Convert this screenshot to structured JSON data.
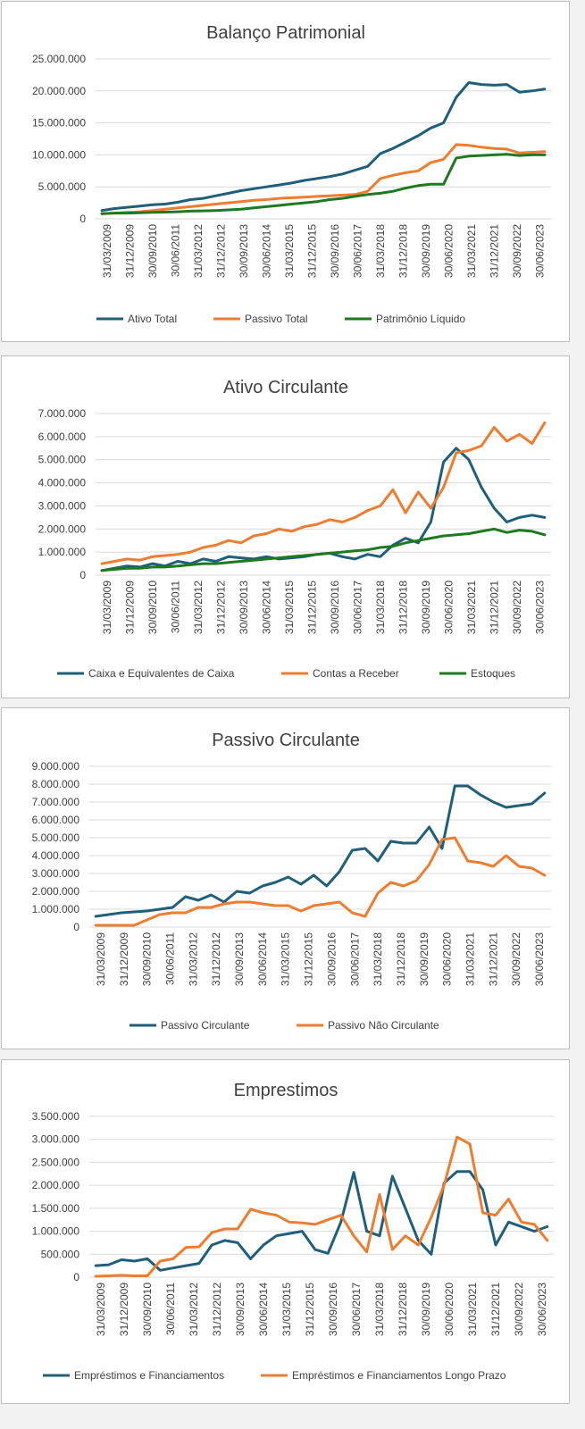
{
  "chart_data": [
    {
      "type": "line",
      "title": "Balanço Patrimonial",
      "x_labels": [
        "31/03/2009",
        "31/12/2009",
        "30/09/2010",
        "30/06/2011",
        "31/03/2012",
        "31/12/2012",
        "30/09/2013",
        "30/06/2014",
        "31/03/2015",
        "31/12/2015",
        "30/09/2016",
        "30/06/2017",
        "31/03/2018",
        "31/12/2018",
        "30/09/2019",
        "30/06/2020",
        "31/03/2021",
        "31/12/2021",
        "30/09/2022",
        "30/06/2023"
      ],
      "y_ticks": [
        "0",
        "5.000.000",
        "10.000.000",
        "15.000.000",
        "20.000.000",
        "25.000.000"
      ],
      "ylim": [
        0,
        25000000
      ],
      "legend": "bottom",
      "grid": true,
      "series": [
        {
          "name": "Ativo Total",
          "color": "#1f5f7a",
          "values": [
            1300000,
            1600000,
            1800000,
            2000000,
            2200000,
            2300000,
            2600000,
            3000000,
            3200000,
            3600000,
            4000000,
            4400000,
            4700000,
            5000000,
            5300000,
            5600000,
            6000000,
            6300000,
            6600000,
            7000000,
            7600000,
            8200000,
            10200000,
            11000000,
            12000000,
            13000000,
            14200000,
            15000000,
            19000000,
            21300000,
            21000000,
            20900000,
            21000000,
            19800000,
            20000000,
            20300000
          ]
        },
        {
          "name": "Passivo Total",
          "color": "#ed7d31",
          "values": [
            800000,
            900000,
            1000000,
            1100000,
            1300000,
            1500000,
            1700000,
            1900000,
            2100000,
            2300000,
            2500000,
            2700000,
            2900000,
            3000000,
            3200000,
            3300000,
            3400000,
            3500000,
            3600000,
            3700000,
            3800000,
            4300000,
            6300000,
            6800000,
            7200000,
            7500000,
            8800000,
            9300000,
            11600000,
            11500000,
            11200000,
            11000000,
            10900000,
            10300000,
            10400000,
            10500000
          ]
        },
        {
          "name": "Patrimônio Líquido",
          "color": "#1e7a1e",
          "values": [
            800000,
            900000,
            900000,
            950000,
            1000000,
            1050000,
            1100000,
            1200000,
            1250000,
            1300000,
            1400000,
            1500000,
            1700000,
            1900000,
            2100000,
            2300000,
            2500000,
            2700000,
            3000000,
            3200000,
            3500000,
            3800000,
            4000000,
            4300000,
            4800000,
            5200000,
            5400000,
            5400000,
            9500000,
            9800000,
            9900000,
            10000000,
            10100000,
            9900000,
            10000000,
            10000000
          ]
        }
      ]
    },
    {
      "type": "line",
      "title": "Ativo Circulante",
      "x_labels": [
        "31/03/2009",
        "31/12/2009",
        "30/09/2010",
        "30/06/2011",
        "31/03/2012",
        "31/12/2012",
        "30/09/2013",
        "30/06/2014",
        "31/03/2015",
        "31/12/2015",
        "30/09/2016",
        "30/06/2017",
        "31/03/2018",
        "31/12/2018",
        "30/09/2019",
        "30/06/2020",
        "31/03/2021",
        "31/12/2021",
        "30/09/2022",
        "30/06/2023"
      ],
      "y_ticks": [
        "0",
        "1.000.000",
        "2.000.000",
        "3.000.000",
        "4.000.000",
        "5.000.000",
        "6.000.000",
        "7.000.000"
      ],
      "ylim": [
        0,
        7000000
      ],
      "legend": "bottom",
      "grid": true,
      "series": [
        {
          "name": "Caixa e Equivalentes de Caixa",
          "color": "#1f5f7a",
          "values": [
            200000,
            300000,
            400000,
            350000,
            500000,
            400000,
            600000,
            500000,
            700000,
            600000,
            800000,
            750000,
            700000,
            800000,
            700000,
            750000,
            800000,
            900000,
            950000,
            800000,
            700000,
            900000,
            800000,
            1300000,
            1600000,
            1400000,
            2300000,
            4900000,
            5500000,
            5000000,
            3800000,
            2900000,
            2300000,
            2500000,
            2600000,
            2500000
          ]
        },
        {
          "name": "Contas a Receber",
          "color": "#ed7d31",
          "values": [
            500000,
            600000,
            700000,
            650000,
            800000,
            850000,
            900000,
            1000000,
            1200000,
            1300000,
            1500000,
            1400000,
            1700000,
            1800000,
            2000000,
            1900000,
            2100000,
            2200000,
            2400000,
            2300000,
            2500000,
            2800000,
            3000000,
            3700000,
            2700000,
            3600000,
            2900000,
            3800000,
            5300000,
            5400000,
            5600000,
            6400000,
            5800000,
            6100000,
            5700000,
            6600000
          ]
        },
        {
          "name": "Estoques",
          "color": "#1e7a1e",
          "values": [
            200000,
            250000,
            300000,
            300000,
            350000,
            350000,
            400000,
            450000,
            500000,
            500000,
            550000,
            600000,
            650000,
            700000,
            750000,
            800000,
            850000,
            900000,
            950000,
            1000000,
            1050000,
            1100000,
            1200000,
            1250000,
            1400000,
            1500000,
            1600000,
            1700000,
            1750000,
            1800000,
            1900000,
            2000000,
            1850000,
            1950000,
            1900000,
            1750000
          ]
        }
      ]
    },
    {
      "type": "line",
      "title": "Passivo Circulante",
      "x_labels": [
        "31/03/2009",
        "31/12/2009",
        "30/09/2010",
        "30/06/2011",
        "31/03/2012",
        "31/12/2012",
        "30/09/2013",
        "30/06/2014",
        "31/03/2015",
        "31/12/2015",
        "30/09/2016",
        "30/06/2017",
        "31/03/2018",
        "31/12/2018",
        "30/09/2019",
        "30/06/2020",
        "31/03/2021",
        "31/12/2021",
        "30/09/2022",
        "30/06/2023"
      ],
      "y_ticks": [
        "0",
        "1.000.000",
        "2.000.000",
        "3.000.000",
        "4.000.000",
        "5.000.000",
        "6.000.000",
        "7.000.000",
        "8.000.000",
        "9.000.000"
      ],
      "ylim": [
        0,
        9000000
      ],
      "legend": "bottom",
      "grid": true,
      "series": [
        {
          "name": "Passivo Circulante",
          "color": "#1f5f7a",
          "values": [
            600000,
            700000,
            800000,
            850000,
            900000,
            1000000,
            1100000,
            1700000,
            1500000,
            1800000,
            1400000,
            2000000,
            1900000,
            2300000,
            2500000,
            2800000,
            2400000,
            2900000,
            2300000,
            3100000,
            4300000,
            4400000,
            3700000,
            4800000,
            4700000,
            4700000,
            5600000,
            4400000,
            7900000,
            7900000,
            7400000,
            7000000,
            6700000,
            6800000,
            6900000,
            7500000
          ]
        },
        {
          "name": "Passivo Não Circulante",
          "color": "#ed7d31",
          "values": [
            100000,
            100000,
            100000,
            100000,
            400000,
            700000,
            800000,
            800000,
            1100000,
            1100000,
            1300000,
            1400000,
            1400000,
            1300000,
            1200000,
            1200000,
            900000,
            1200000,
            1300000,
            1400000,
            800000,
            600000,
            1900000,
            2500000,
            2300000,
            2600000,
            3500000,
            4900000,
            5000000,
            3700000,
            3600000,
            3400000,
            4000000,
            3400000,
            3300000,
            2900000
          ]
        }
      ]
    },
    {
      "type": "line",
      "title": "Emprestimos",
      "x_labels": [
        "31/03/2009",
        "31/12/2009",
        "30/09/2010",
        "30/06/2011",
        "31/03/2012",
        "31/12/2012",
        "30/09/2013",
        "30/06/2014",
        "31/03/2015",
        "31/12/2015",
        "30/09/2016",
        "30/06/2017",
        "31/03/2018",
        "31/12/2018",
        "30/09/2019",
        "30/06/2020",
        "31/03/2021",
        "31/12/2021",
        "30/09/2022",
        "30/06/2023"
      ],
      "y_ticks": [
        "0",
        "500.000",
        "1.000.000",
        "1.500.000",
        "2.000.000",
        "2.500.000",
        "3.000.000",
        "3.500.000"
      ],
      "ylim": [
        0,
        3500000
      ],
      "legend": "bottom",
      "grid": true,
      "series": [
        {
          "name": "Empréstimos e Financiamentos",
          "color": "#1f5f7a",
          "values": [
            250000,
            270000,
            380000,
            350000,
            400000,
            150000,
            200000,
            250000,
            300000,
            700000,
            800000,
            750000,
            400000,
            700000,
            900000,
            950000,
            1000000,
            600000,
            520000,
            1200000,
            2280000,
            1000000,
            900000,
            2200000,
            1500000,
            800000,
            500000,
            2050000,
            2300000,
            2300000,
            1900000,
            700000,
            1200000,
            1100000,
            1000000,
            1100000
          ]
        },
        {
          "name": "Empréstimos e Financiamentos Longo Prazo",
          "color": "#ed7d31",
          "values": [
            20000,
            30000,
            40000,
            30000,
            30000,
            350000,
            400000,
            650000,
            660000,
            970000,
            1050000,
            1050000,
            1480000,
            1400000,
            1350000,
            1200000,
            1180000,
            1150000,
            1250000,
            1350000,
            900000,
            550000,
            1800000,
            600000,
            900000,
            700000,
            1300000,
            2000000,
            3050000,
            2900000,
            1400000,
            1350000,
            1700000,
            1200000,
            1150000,
            800000
          ]
        }
      ]
    }
  ]
}
